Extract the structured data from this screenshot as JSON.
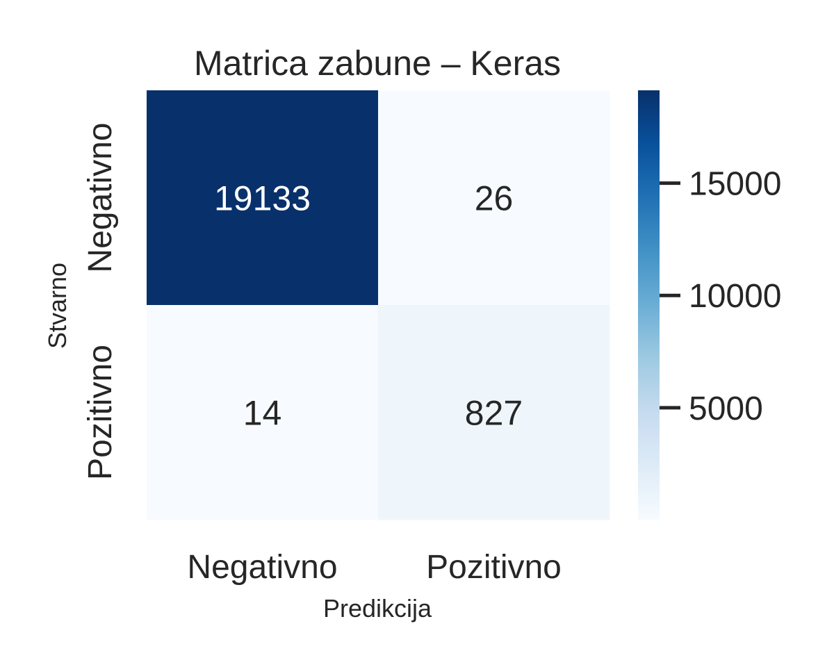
{
  "chart_data": {
    "type": "heatmap",
    "title": "Matrica zabune – Keras",
    "xlabel": "Predikcija",
    "ylabel": "Stvarno",
    "x_categories": [
      "Negativno",
      "Pozitivno"
    ],
    "y_categories": [
      "Negativno",
      "Pozitivno"
    ],
    "values": [
      [
        19133,
        26
      ],
      [
        14,
        827
      ]
    ],
    "colormap": "Blues",
    "color_range": [
      14,
      19133
    ],
    "colorbar": {
      "ticks": [
        5000,
        10000,
        15000
      ],
      "tick_labels": [
        "5000",
        "10000",
        "15000"
      ],
      "placement": "right"
    },
    "colors": {
      "low": "#f7fbff",
      "high": "#08306b",
      "text_dark": "#262626",
      "text_light": "#ffffff"
    }
  }
}
